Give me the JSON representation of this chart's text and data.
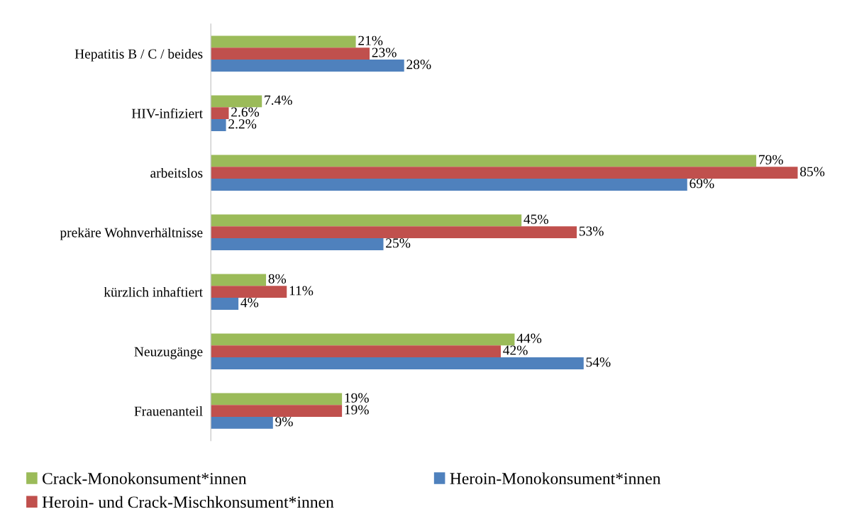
{
  "chart_data": {
    "type": "bar",
    "orientation": "horizontal",
    "legend": "bottom",
    "grid": false,
    "tick_labels": "y",
    "categories": [
      "Hepatitis B / C / beides",
      "HIV-infiziert",
      "arbeitslos",
      "prekäre Wohnverhältnisse",
      "kürzlich inhaftiert",
      "Neuzugänge",
      "Frauenanteil"
    ],
    "series": [
      {
        "name": "Crack-Monokonsument*innen",
        "color": "#9bbb59",
        "values": [
          21,
          7.4,
          79,
          45,
          8,
          44,
          19
        ],
        "value_labels": [
          "21%",
          "7.4%",
          "79%",
          "45%",
          "8%",
          "44%",
          "19%"
        ]
      },
      {
        "name": "Heroin- und Crack-Mischkonsument*innen",
        "color": "#c0504d",
        "values": [
          23,
          2.6,
          85,
          53,
          11,
          42,
          19
        ],
        "value_labels": [
          "23%",
          "2.6%",
          "85%",
          "53%",
          "11%",
          "42%",
          "19%"
        ]
      },
      {
        "name": "Heroin-Monokonsument*innen",
        "color": "#4f81bd",
        "values": [
          28,
          2.2,
          69,
          25,
          4,
          54,
          9
        ],
        "value_labels": [
          "28%",
          "2.2%",
          "69%",
          "25%",
          "4%",
          "54%",
          "9%"
        ]
      }
    ]
  }
}
